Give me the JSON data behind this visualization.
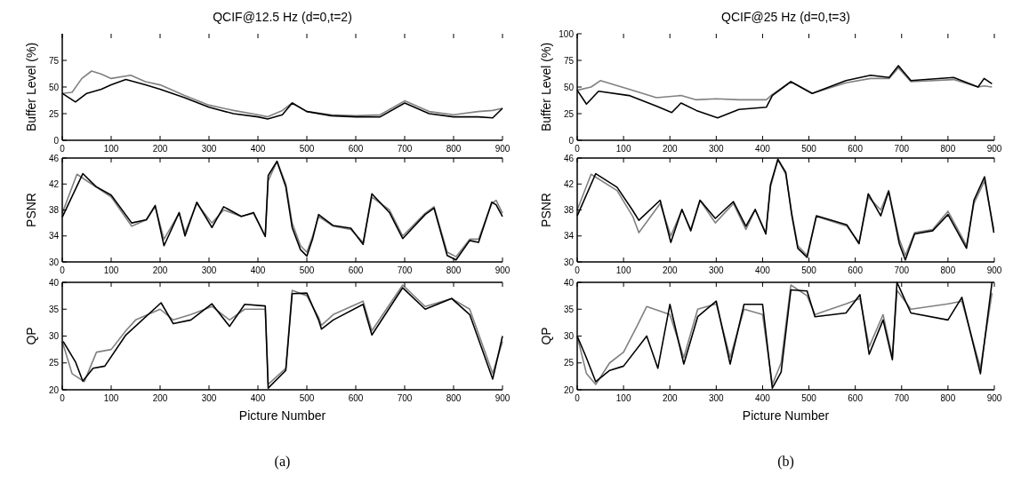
{
  "chart_data": [
    {
      "type": "line",
      "title": "QCIF@12.5 Hz (d=0,t=2)",
      "ylabel": "Buffer Level (%)",
      "xlim": [
        0,
        900
      ],
      "xticks": [
        0,
        100,
        200,
        300,
        400,
        500,
        600,
        700,
        800,
        900
      ],
      "ylim": [
        0,
        100
      ],
      "yticks": [
        0,
        25,
        50,
        75
      ],
      "grid": false,
      "series": [
        {
          "color": "#808080",
          "x": [
            0,
            20,
            40,
            60,
            80,
            100,
            140,
            170,
            200,
            250,
            300,
            350,
            400,
            420,
            450,
            470,
            500,
            550,
            600,
            650,
            700,
            750,
            800,
            850,
            880,
            900
          ],
          "values": [
            44,
            45,
            58,
            65,
            62,
            58,
            61,
            55,
            52,
            42,
            33,
            28,
            24,
            22,
            28,
            35,
            27,
            24,
            23,
            24,
            37,
            27,
            24,
            27,
            28,
            30
          ]
        },
        {
          "color": "#000000",
          "x": [
            0,
            27,
            50,
            80,
            100,
            130,
            170,
            200,
            250,
            300,
            350,
            400,
            420,
            450,
            470,
            500,
            550,
            600,
            650,
            700,
            750,
            800,
            850,
            880,
            900
          ],
          "values": [
            44,
            36,
            44,
            48,
            52,
            57,
            52,
            48,
            40,
            31,
            25,
            22,
            20,
            24,
            35,
            27,
            23,
            22,
            22,
            35,
            25,
            22,
            22,
            21,
            30
          ]
        }
      ]
    },
    {
      "type": "line",
      "ylabel": "PSNR",
      "xlim": [
        0,
        900
      ],
      "xticks": [
        0,
        100,
        200,
        300,
        400,
        500,
        600,
        700,
        800,
        900
      ],
      "ylim": [
        30,
        46
      ],
      "yticks": [
        30,
        34,
        38,
        42,
        46
      ],
      "grid": false,
      "series": [
        {
          "color": "#808080",
          "x": [
            0,
            30,
            60,
            100,
            142,
            172,
            190,
            208,
            239,
            251,
            275,
            306,
            330,
            366,
            391,
            415,
            421,
            439,
            457,
            470,
            487,
            500,
            512,
            524,
            554,
            590,
            615,
            633,
            669,
            696,
            742,
            760,
            787,
            805,
            833,
            851,
            878,
            887,
            900
          ],
          "values": [
            37.5,
            43.5,
            42,
            40,
            35.5,
            36.5,
            38.5,
            33.5,
            37.5,
            34.5,
            39,
            36,
            38,
            37,
            37.5,
            34,
            42.5,
            45.5,
            42,
            36,
            32.5,
            31.5,
            34,
            37,
            35.5,
            35,
            33,
            40,
            38,
            34,
            37.5,
            38.5,
            31.5,
            30.8,
            33.5,
            33.5,
            39,
            39.5,
            37.5
          ]
        },
        {
          "color": "#000000",
          "x": [
            0,
            42,
            69,
            100,
            142,
            172,
            190,
            208,
            239,
            251,
            275,
            306,
            330,
            366,
            391,
            415,
            421,
            439,
            457,
            470,
            487,
            500,
            512,
            524,
            554,
            590,
            615,
            633,
            669,
            696,
            742,
            760,
            787,
            805,
            833,
            851,
            878,
            887,
            900
          ],
          "values": [
            36.9,
            43.6,
            41.6,
            40.3,
            36,
            36.5,
            38.7,
            32.5,
            37.6,
            34,
            39.2,
            35.3,
            38.5,
            37,
            37.6,
            33.9,
            43.3,
            45.5,
            41.6,
            35.3,
            31.9,
            30.9,
            33.6,
            37.3,
            35.6,
            35.2,
            32.7,
            40.5,
            37.6,
            33.6,
            37.3,
            38.3,
            31,
            30.3,
            33.3,
            33,
            39.2,
            38.8,
            37
          ]
        }
      ]
    },
    {
      "type": "line",
      "xlabel": "Picture Number",
      "ylabel": "QP",
      "annotations": [
        "(a)"
      ],
      "xlim": [
        0,
        900
      ],
      "xticks": [
        0,
        100,
        200,
        300,
        400,
        500,
        600,
        700,
        800,
        900
      ],
      "ylim": [
        20,
        40
      ],
      "yticks": [
        20,
        25,
        30,
        35,
        40
      ],
      "grid": false,
      "series": [
        {
          "color": "#808080",
          "x": [
            0,
            20,
            45,
            70,
            100,
            130,
            150,
            200,
            227,
            263,
            306,
            342,
            373,
            415,
            421,
            457,
            470,
            500,
            524,
            530,
            554,
            615,
            633,
            696,
            742,
            796,
            833,
            880,
            900
          ],
          "values": [
            29,
            23,
            21.5,
            27,
            27.5,
            31,
            33,
            35,
            33,
            34,
            35.5,
            33,
            35,
            35,
            21,
            24,
            38.5,
            37.5,
            33.5,
            32,
            34,
            36.5,
            31,
            39.5,
            35.5,
            37,
            35,
            23,
            29
          ]
        },
        {
          "color": "#000000",
          "x": [
            2,
            27,
            42,
            63,
            87,
            130,
            202,
            227,
            263,
            306,
            342,
            373,
            415,
            421,
            457,
            470,
            500,
            524,
            530,
            554,
            615,
            633,
            696,
            742,
            796,
            833,
            880,
            900
          ],
          "values": [
            29,
            25.2,
            21.6,
            24,
            24.4,
            30.2,
            36.2,
            32.3,
            33,
            36,
            31.8,
            35.9,
            35.6,
            20.3,
            23.6,
            37.9,
            38,
            33,
            31.3,
            33,
            35.9,
            30.2,
            39,
            35,
            37,
            34,
            22,
            30
          ]
        }
      ]
    },
    {
      "type": "line",
      "title": "QCIF@25 Hz (d=0,t=3)",
      "ylabel": "Buffer Level (%)",
      "xlim": [
        0,
        900
      ],
      "xticks": [
        0,
        100,
        200,
        300,
        400,
        500,
        600,
        700,
        800,
        900
      ],
      "ylim": [
        0,
        100
      ],
      "yticks": [
        0,
        25,
        50,
        75,
        100
      ],
      "grid": false,
      "series": [
        {
          "color": "#808080",
          "x": [
            0,
            30,
            50,
            112,
            171,
            224,
            257,
            300,
            349,
            408,
            421,
            461,
            507,
            580,
            633,
            673,
            693,
            720,
            812,
            865,
            878,
            895
          ],
          "values": [
            47,
            50,
            56,
            48,
            40,
            42,
            38,
            39,
            38,
            38,
            43,
            55,
            44,
            54,
            58,
            58,
            68,
            55,
            57,
            50,
            51,
            50
          ]
        },
        {
          "color": "#000000",
          "x": [
            0,
            20,
            46,
            112,
            171,
            204,
            224,
            257,
            303,
            349,
            408,
            421,
            461,
            507,
            580,
            633,
            673,
            693,
            720,
            812,
            865,
            878,
            895
          ],
          "values": [
            47,
            34,
            46,
            42,
            32,
            26,
            35,
            28,
            21,
            29,
            31,
            42,
            55,
            44,
            56,
            61,
            59,
            70,
            56,
            59,
            50,
            58,
            53
          ]
        }
      ]
    },
    {
      "type": "line",
      "ylabel": "PSNR",
      "xlim": [
        0,
        900
      ],
      "xticks": [
        0,
        100,
        200,
        300,
        400,
        500,
        600,
        700,
        800,
        900
      ],
      "ylim": [
        30,
        46
      ],
      "yticks": [
        30,
        34,
        38,
        42,
        46
      ],
      "grid": false,
      "series": [
        {
          "color": "#808080",
          "x": [
            0,
            30,
            86,
            120,
            133,
            179,
            202,
            226,
            245,
            265,
            298,
            337,
            364,
            384,
            407,
            417,
            433,
            450,
            463,
            476,
            496,
            516,
            582,
            608,
            628,
            655,
            672,
            695,
            708,
            728,
            767,
            800,
            840,
            856,
            879,
            899
          ],
          "values": [
            38,
            43.5,
            41,
            37,
            34.5,
            39,
            34,
            38,
            35,
            39.5,
            36,
            39,
            35,
            38,
            34.5,
            41.5,
            45.8,
            43.5,
            37.5,
            32.5,
            31,
            37,
            35.5,
            33,
            40,
            38,
            41,
            33.5,
            31,
            34.5,
            35,
            37.8,
            32.5,
            39,
            42.5,
            35
          ]
        },
        {
          "color": "#000000",
          "x": [
            0,
            40,
            86,
            120,
            133,
            179,
            202,
            226,
            245,
            265,
            298,
            337,
            364,
            384,
            407,
            417,
            433,
            450,
            463,
            476,
            496,
            516,
            582,
            608,
            628,
            655,
            672,
            695,
            708,
            728,
            767,
            800,
            840,
            856,
            879,
            899
          ],
          "values": [
            37.1,
            43.6,
            41.5,
            37.9,
            36.4,
            39.5,
            33,
            38.1,
            34.8,
            39.5,
            36.7,
            39.3,
            35.5,
            38.1,
            34.3,
            41.9,
            45.8,
            43.8,
            37.2,
            32.1,
            30.7,
            37.1,
            35.7,
            32.8,
            40.5,
            37.1,
            40.9,
            32.8,
            30.3,
            34.3,
            34.8,
            37.3,
            32.1,
            39.5,
            43.1,
            34.5
          ]
        }
      ]
    },
    {
      "type": "line",
      "xlabel": "Picture Number",
      "ylabel": "QP",
      "annotations": [
        "(b)"
      ],
      "xlim": [
        0,
        900
      ],
      "xticks": [
        0,
        100,
        200,
        300,
        400,
        500,
        600,
        700,
        800,
        900
      ],
      "ylim": [
        20,
        40
      ],
      "yticks": [
        20,
        25,
        30,
        35,
        40
      ],
      "grid": false,
      "series": [
        {
          "color": "#808080",
          "x": [
            0,
            20,
            40,
            70,
            100,
            130,
            150,
            200,
            230,
            260,
            300,
            330,
            360,
            400,
            421,
            440,
            461,
            496,
            513,
            580,
            610,
            630,
            660,
            680,
            690,
            720,
            800,
            830,
            870,
            895
          ],
          "values": [
            30,
            23,
            21,
            25,
            27,
            32,
            35.5,
            34,
            26,
            35,
            36,
            26,
            35,
            34,
            21,
            25,
            39.5,
            37.5,
            34,
            36,
            37,
            28,
            34,
            26,
            38.5,
            35,
            36,
            36.5,
            24,
            38
          ]
        },
        {
          "color": "#000000",
          "x": [
            0,
            20,
            40,
            70,
            100,
            150,
            174,
            200,
            230,
            260,
            300,
            330,
            360,
            400,
            421,
            440,
            461,
            496,
            513,
            580,
            610,
            630,
            660,
            680,
            690,
            720,
            800,
            830,
            870,
            895
          ],
          "values": [
            30,
            25.9,
            21.5,
            23.6,
            24.4,
            30,
            24,
            35.9,
            24.8,
            33.6,
            36.5,
            24.8,
            35.9,
            35.9,
            20.3,
            23.3,
            38.6,
            38.4,
            33.6,
            34.3,
            37.7,
            26.6,
            33,
            25.6,
            40,
            34.3,
            33,
            37.2,
            23,
            40
          ]
        }
      ]
    }
  ]
}
